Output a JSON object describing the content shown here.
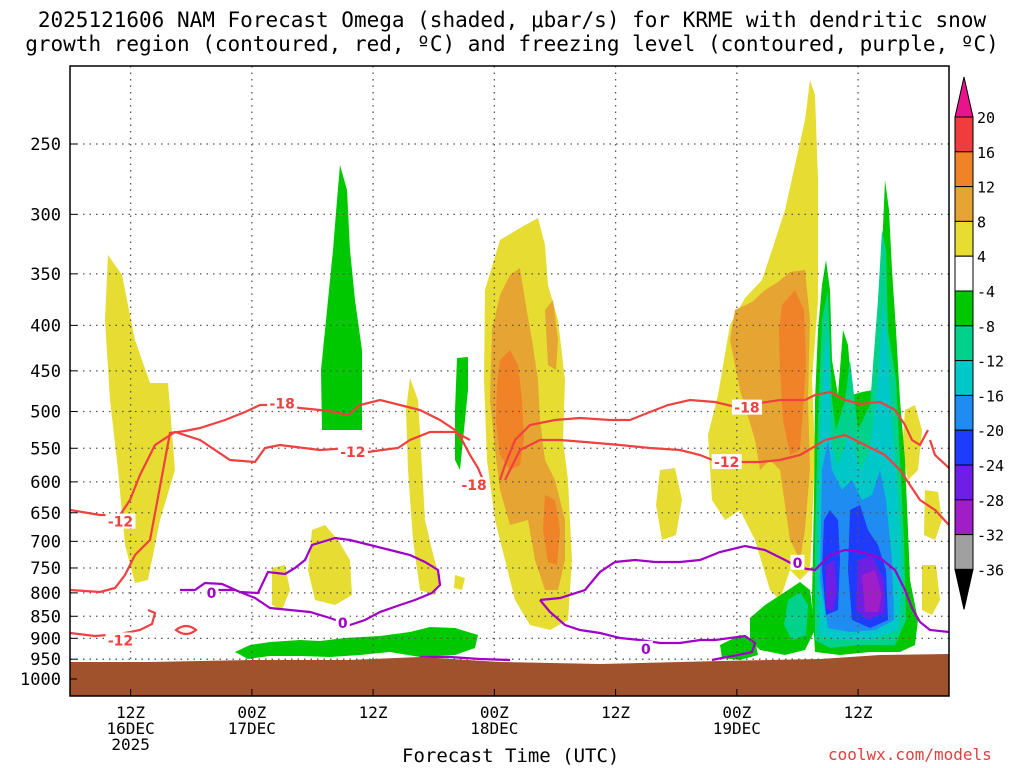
{
  "title_line1": "2025121606 NAM Forecast Omega (shaded, μbar/s) for KRME with dendritic snow",
  "title_line2": "growth region (contoured, red, ºC) and freezing level (contoured, purple, ºC)",
  "credit": "coolwx.com/models",
  "chart_data": {
    "type": "time-height cross-section",
    "title": "2025121606 NAM Forecast Omega (shaded, μbar/s) for KRME with dendritic snow growth region (contoured, red, ºC) and freezing level (contoured, purple, ºC)",
    "xlabel": "Forecast Time (UTC)",
    "ylabel": "",
    "y_ticks": [
      "250",
      "300",
      "350",
      "400",
      "450",
      "500",
      "550",
      "600",
      "650",
      "700",
      "750",
      "800",
      "850",
      "900",
      "950",
      "1000"
    ],
    "y_values": [
      250,
      300,
      350,
      400,
      450,
      500,
      550,
      600,
      650,
      700,
      750,
      800,
      850,
      900,
      950,
      1000
    ],
    "ylim": [
      1000,
      200
    ],
    "y_scale": "log-pressure",
    "x_range_hours": [
      0,
      87
    ],
    "x_ticks": [
      {
        "hour": 6,
        "l1": "12Z",
        "l2": "16DEC",
        "l3": "2025"
      },
      {
        "hour": 18,
        "l1": "00Z",
        "l2": "17DEC",
        "l3": ""
      },
      {
        "hour": 30,
        "l1": "12Z",
        "l2": "",
        "l3": ""
      },
      {
        "hour": 42,
        "l1": "00Z",
        "l2": "18DEC",
        "l3": ""
      },
      {
        "hour": 54,
        "l1": "12Z",
        "l2": "",
        "l3": ""
      },
      {
        "hour": 66,
        "l1": "00Z",
        "l2": "19DEC",
        "l3": ""
      },
      {
        "hour": 78,
        "l1": "12Z",
        "l2": "",
        "l3": ""
      }
    ],
    "colorbar": {
      "units": "μbar/s",
      "labels": [
        "20",
        "16",
        "12",
        "8",
        "4",
        "-4",
        "-8",
        "-12",
        "-16",
        "-20",
        "-24",
        "-28",
        "-32",
        "-36"
      ],
      "bins": [
        {
          "range": ">20",
          "color": "#e8148c"
        },
        {
          "range": "16 to 20",
          "color": "#f03c3c"
        },
        {
          "range": "12 to 16",
          "color": "#f08228"
        },
        {
          "range": "8 to 12",
          "color": "#e6a532"
        },
        {
          "range": "4 to 8",
          "color": "#e6dc32"
        },
        {
          "range": "-4 to 4",
          "color": "#ffffff"
        },
        {
          "range": "-8 to -4",
          "color": "#00c800"
        },
        {
          "range": "-12 to -8",
          "color": "#00d28c"
        },
        {
          "range": "-16 to -12",
          "color": "#00c8c8"
        },
        {
          "range": "-20 to -16",
          "color": "#1e8cf0"
        },
        {
          "range": "-24 to -20",
          "color": "#1e3cff"
        },
        {
          "range": "-28 to -24",
          "color": "#6e1ee6"
        },
        {
          "range": "-32 to -28",
          "color": "#a01ec8"
        },
        {
          "range": "-36 to -32",
          "color": "#a0a0a0"
        },
        {
          "range": "<-36",
          "color": "#000000"
        }
      ]
    },
    "contours": {
      "dendritic_red": [
        {
          "label": "-18",
          "hour": 21,
          "pressure": 490
        },
        {
          "label": "-12",
          "hour": 28,
          "pressure": 555
        },
        {
          "label": "-18",
          "hour": 40,
          "pressure": 605
        },
        {
          "label": "-12",
          "hour": 5,
          "pressure": 665
        },
        {
          "label": "-12",
          "hour": 5,
          "pressure": 905
        },
        {
          "label": "-18",
          "hour": 67,
          "pressure": 495
        },
        {
          "label": "-12",
          "hour": 65,
          "pressure": 570
        }
      ],
      "freezing_purple": [
        {
          "label": "0",
          "hour": 14,
          "pressure": 800
        },
        {
          "label": "0",
          "hour": 27,
          "pressure": 865
        },
        {
          "label": "0",
          "hour": 57,
          "pressure": 925
        },
        {
          "label": "0",
          "hour": 72,
          "pressure": 740
        }
      ]
    },
    "ground_color": "#a0522d",
    "dendritic_color": "#f04040",
    "freezing_color": "#a000c8"
  }
}
